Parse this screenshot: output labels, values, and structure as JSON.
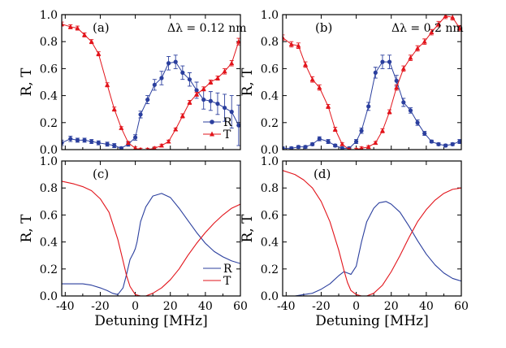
{
  "chart_data": [
    {
      "panel": "(a)",
      "type": "scatter",
      "annotation": "Δλ = 0.12 nm",
      "xlabel": "",
      "ylabel": "R, T",
      "xlim": [
        -42,
        60
      ],
      "ylim": [
        0,
        1.0
      ],
      "xticks": [
        -40,
        -20,
        0,
        20,
        40,
        60
      ],
      "yticks": [
        0.0,
        0.2,
        0.4,
        0.6,
        0.8,
        1.0
      ],
      "ytick_labels": [
        "0.0",
        "0.2",
        "0.4",
        "0.6",
        "0.8",
        "1.0"
      ],
      "legend": [
        {
          "name": "R",
          "color": "#2b3f9e",
          "marker": "circle"
        },
        {
          "name": "T",
          "color": "#e2141b",
          "marker": "triangle"
        }
      ],
      "series": [
        {
          "name": "R",
          "color": "#2b3f9e",
          "marker": "circle",
          "x": [
            -42,
            -37,
            -33,
            -29,
            -25,
            -21,
            -16,
            -12,
            -8,
            -4,
            0,
            3,
            7,
            11,
            15,
            19,
            23,
            27,
            31,
            35,
            39,
            43,
            47,
            51,
            55,
            59
          ],
          "y": [
            0.05,
            0.08,
            0.07,
            0.07,
            0.06,
            0.05,
            0.04,
            0.03,
            0.01,
            0.04,
            0.09,
            0.26,
            0.37,
            0.48,
            0.53,
            0.64,
            0.65,
            0.57,
            0.52,
            0.44,
            0.37,
            0.36,
            0.34,
            0.31,
            0.28,
            0.18
          ],
          "err": [
            0.02,
            0.02,
            0.015,
            0.015,
            0.015,
            0.015,
            0.015,
            0.015,
            0.01,
            0.015,
            0.02,
            0.025,
            0.03,
            0.04,
            0.05,
            0.05,
            0.05,
            0.05,
            0.05,
            0.06,
            0.07,
            0.07,
            0.08,
            0.1,
            0.12,
            0.15
          ]
        },
        {
          "name": "T",
          "color": "#e2141b",
          "marker": "triangle",
          "x": [
            -42,
            -37,
            -33,
            -29,
            -25,
            -21,
            -16,
            -12,
            -8,
            -4,
            0,
            3,
            7,
            11,
            15,
            19,
            23,
            27,
            31,
            35,
            39,
            43,
            47,
            51,
            55,
            59
          ],
          "y": [
            0.93,
            0.91,
            0.9,
            0.85,
            0.8,
            0.71,
            0.48,
            0.3,
            0.16,
            0.05,
            0.01,
            0.0,
            0.0,
            0.01,
            0.03,
            0.06,
            0.15,
            0.25,
            0.35,
            0.41,
            0.45,
            0.5,
            0.53,
            0.58,
            0.64,
            0.8
          ],
          "err": [
            0.015,
            0.015,
            0.015,
            0.015,
            0.015,
            0.015,
            0.015,
            0.015,
            0.01,
            0.01,
            0.01,
            0.01,
            0.01,
            0.01,
            0.01,
            0.01,
            0.01,
            0.015,
            0.015,
            0.015,
            0.015,
            0.015,
            0.015,
            0.02,
            0.02,
            0.025
          ]
        }
      ]
    },
    {
      "panel": "(b)",
      "type": "scatter",
      "annotation": "Δλ = 0.2 nm",
      "xlabel": "",
      "ylabel": "R, T",
      "xlim": [
        -42,
        60
      ],
      "ylim": [
        0,
        1.0
      ],
      "xticks": [
        -40,
        -20,
        0,
        20,
        40,
        60
      ],
      "yticks": [
        0.0,
        0.2,
        0.4,
        0.6,
        0.8,
        1.0
      ],
      "ytick_labels": [
        "0.0",
        "0.2",
        "0.4",
        "0.6",
        "0.8",
        "1.0"
      ],
      "series": [
        {
          "name": "R",
          "color": "#2b3f9e",
          "marker": "circle",
          "x": [
            -42,
            -37,
            -33,
            -29,
            -25,
            -21,
            -16,
            -12,
            -8,
            -4,
            0,
            3,
            7,
            11,
            15,
            19,
            23,
            27,
            31,
            35,
            39,
            43,
            47,
            51,
            55,
            59
          ],
          "y": [
            0.01,
            0.01,
            0.02,
            0.02,
            0.04,
            0.08,
            0.06,
            0.03,
            0.01,
            0.01,
            0.06,
            0.14,
            0.32,
            0.57,
            0.65,
            0.65,
            0.51,
            0.35,
            0.29,
            0.2,
            0.12,
            0.06,
            0.04,
            0.03,
            0.04,
            0.06
          ],
          "err": [
            0.01,
            0.01,
            0.01,
            0.01,
            0.01,
            0.015,
            0.015,
            0.01,
            0.01,
            0.01,
            0.015,
            0.02,
            0.03,
            0.04,
            0.05,
            0.05,
            0.04,
            0.03,
            0.02,
            0.02,
            0.015,
            0.01,
            0.01,
            0.01,
            0.01,
            0.015
          ]
        },
        {
          "name": "T",
          "color": "#e2141b",
          "marker": "triangle",
          "x": [
            -42,
            -37,
            -33,
            -29,
            -25,
            -21,
            -16,
            -12,
            -8,
            -4,
            0,
            3,
            7,
            11,
            15,
            19,
            23,
            27,
            31,
            35,
            39,
            43,
            47,
            51,
            55,
            59
          ],
          "y": [
            0.83,
            0.78,
            0.77,
            0.63,
            0.52,
            0.46,
            0.32,
            0.15,
            0.04,
            0.0,
            0.0,
            0.01,
            0.02,
            0.05,
            0.14,
            0.28,
            0.46,
            0.6,
            0.68,
            0.75,
            0.8,
            0.87,
            0.93,
            0.99,
            0.98,
            0.9
          ],
          "err": [
            0.02,
            0.02,
            0.02,
            0.02,
            0.02,
            0.02,
            0.015,
            0.015,
            0.01,
            0.01,
            0.01,
            0.01,
            0.01,
            0.01,
            0.015,
            0.015,
            0.02,
            0.02,
            0.02,
            0.02,
            0.02,
            0.02,
            0.02,
            0.02,
            0.02,
            0.02
          ]
        }
      ]
    },
    {
      "panel": "(c)",
      "type": "line",
      "xlabel": "Detuning [MHz]",
      "ylabel": "R, T",
      "xlim": [
        -42,
        60
      ],
      "ylim": [
        0,
        1.0
      ],
      "xticks": [
        -40,
        -20,
        0,
        20,
        40,
        60
      ],
      "xtick_labels": [
        "-40",
        "-20",
        "0",
        "20",
        "40",
        "60"
      ],
      "yticks": [
        0.0,
        0.2,
        0.4,
        0.6,
        0.8,
        1.0
      ],
      "ytick_labels": [
        "0.0",
        "0.2",
        "0.4",
        "0.6",
        "0.8",
        "1.0"
      ],
      "legend": [
        {
          "name": "R",
          "color": "#2b3f9e"
        },
        {
          "name": "T",
          "color": "#e2141b"
        }
      ],
      "series": [
        {
          "name": "R",
          "color": "#2b3f9e",
          "x": [
            -42,
            -35,
            -30,
            -25,
            -20,
            -16,
            -13,
            -10,
            -7,
            -5,
            -3,
            -1,
            0,
            1,
            3,
            6,
            10,
            15,
            20,
            25,
            30,
            35,
            40,
            45,
            50,
            55,
            60
          ],
          "y": [
            0.09,
            0.09,
            0.09,
            0.08,
            0.06,
            0.04,
            0.02,
            0.01,
            0.06,
            0.16,
            0.27,
            0.32,
            0.35,
            0.4,
            0.55,
            0.66,
            0.74,
            0.76,
            0.73,
            0.65,
            0.56,
            0.47,
            0.39,
            0.33,
            0.29,
            0.26,
            0.24
          ]
        },
        {
          "name": "T",
          "color": "#e2141b",
          "x": [
            -42,
            -35,
            -30,
            -25,
            -20,
            -15,
            -10,
            -7,
            -5,
            -3,
            0,
            3,
            6,
            10,
            15,
            20,
            25,
            30,
            35,
            40,
            45,
            50,
            55,
            60
          ],
          "y": [
            0.85,
            0.83,
            0.81,
            0.78,
            0.72,
            0.62,
            0.42,
            0.26,
            0.15,
            0.07,
            0.01,
            0.0,
            0.0,
            0.02,
            0.06,
            0.12,
            0.2,
            0.3,
            0.39,
            0.47,
            0.54,
            0.6,
            0.65,
            0.68
          ]
        }
      ]
    },
    {
      "panel": "(d)",
      "type": "line",
      "xlabel": "Detuning [MHz]",
      "ylabel": "R, T",
      "xlim": [
        -42,
        60
      ],
      "ylim": [
        0,
        1.0
      ],
      "xticks": [
        -40,
        -20,
        0,
        20,
        40,
        60
      ],
      "xtick_labels": [
        "-40",
        "-20",
        "0",
        "20",
        "40",
        "60"
      ],
      "yticks": [
        0.0,
        0.2,
        0.4,
        0.6,
        0.8,
        1.0
      ],
      "ytick_labels": [
        "0.0",
        "0.2",
        "0.4",
        "0.6",
        "0.8",
        "1.0"
      ],
      "series": [
        {
          "name": "R",
          "color": "#2b3f9e",
          "x": [
            -42,
            -35,
            -30,
            -25,
            -20,
            -15,
            -10,
            -7,
            -5,
            -3,
            0,
            3,
            6,
            10,
            13,
            17,
            20,
            25,
            30,
            35,
            40,
            45,
            50,
            55,
            60
          ],
          "y": [
            0.0,
            0.0,
            0.01,
            0.02,
            0.05,
            0.09,
            0.15,
            0.18,
            0.17,
            0.16,
            0.22,
            0.4,
            0.55,
            0.65,
            0.69,
            0.7,
            0.68,
            0.62,
            0.52,
            0.41,
            0.31,
            0.23,
            0.17,
            0.13,
            0.11
          ]
        },
        {
          "name": "T",
          "color": "#e2141b",
          "x": [
            -42,
            -35,
            -30,
            -25,
            -20,
            -15,
            -10,
            -7,
            -5,
            -3,
            0,
            3,
            6,
            10,
            15,
            20,
            25,
            30,
            35,
            40,
            45,
            50,
            55,
            60
          ],
          "y": [
            0.93,
            0.9,
            0.86,
            0.8,
            0.7,
            0.55,
            0.34,
            0.19,
            0.1,
            0.04,
            0.01,
            0.0,
            0.0,
            0.02,
            0.08,
            0.18,
            0.3,
            0.43,
            0.55,
            0.64,
            0.71,
            0.76,
            0.79,
            0.8
          ]
        }
      ]
    }
  ]
}
